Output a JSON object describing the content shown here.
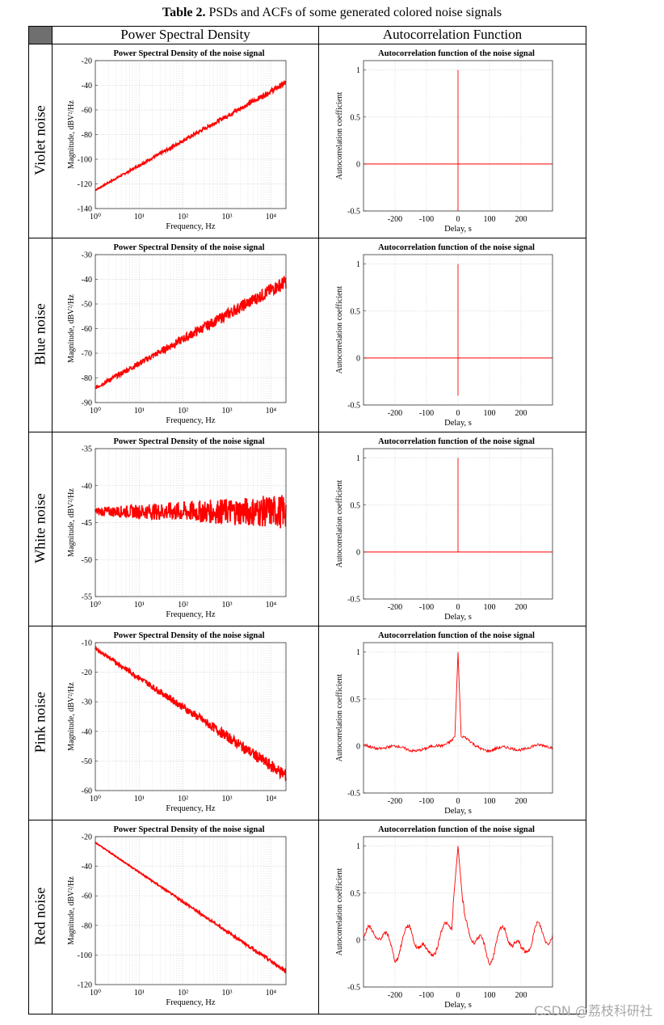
{
  "caption": {
    "label": "Table 2.",
    "text": " PSDs and ACFs of some generated colored noise signals"
  },
  "header": {
    "col1": "Power Spectral Density",
    "col2": "Autocorrelation Function"
  },
  "rows": [
    {
      "label": "Violet noise"
    },
    {
      "label": "Blue noise"
    },
    {
      "label": "White noise"
    },
    {
      "label": "Pink noise"
    },
    {
      "label": "Red noise"
    }
  ],
  "watermark": "CSDN @荔枝科研社",
  "colors": {
    "trace": "#ff0000",
    "grid": "#d9d9d9",
    "header_fill": "#6f6f6f"
  },
  "chart_data": [
    {
      "type": "line",
      "title": "Power Spectral Density of the noise signal",
      "xlabel": "Frequency, Hz",
      "ylabel": "Magnitude, dBV²/Hz",
      "xscale": "log",
      "xlim": [
        1,
        22050
      ],
      "ylim": [
        -140,
        -20
      ],
      "yticks": [
        -20,
        -40,
        -60,
        -80,
        -100,
        -120,
        -140
      ],
      "xticks": [
        "10⁰",
        "10¹",
        "10²",
        "10³",
        "10⁴"
      ],
      "series": [
        {
          "x": [
            1,
            22050
          ],
          "values": [
            -125,
            -38
          ],
          "noise_dB": 1.5
        }
      ]
    },
    {
      "type": "line",
      "title": "Autocorrelation function of the noise signal",
      "xlabel": "Delay, s",
      "ylabel": "Autocorrelation coefficient",
      "xlim": [
        -300,
        300
      ],
      "ylim": [
        -0.5,
        1.1
      ],
      "xticks": [
        -200,
        -100,
        0,
        100,
        200
      ],
      "yticks": [
        1,
        0.5,
        0,
        -0.5
      ],
      "series": [
        {
          "x": [
            -300,
            -1,
            0,
            1,
            300
          ],
          "values": [
            0,
            0,
            1,
            -0.5,
            0
          ]
        }
      ]
    },
    {
      "type": "line",
      "title": "Power Spectral Density of the noise signal",
      "xlabel": "Frequency, Hz",
      "ylabel": "Magnitude, dBV²/Hz",
      "xscale": "log",
      "xlim": [
        1,
        22050
      ],
      "ylim": [
        -90,
        -30
      ],
      "yticks": [
        -30,
        -40,
        -50,
        -60,
        -70,
        -80,
        -90
      ],
      "xticks": [
        "10⁰",
        "10¹",
        "10²",
        "10³",
        "10⁴"
      ],
      "series": [
        {
          "x": [
            1,
            22050
          ],
          "values": [
            -84,
            -41
          ],
          "noise_dB": 2
        }
      ]
    },
    {
      "type": "line",
      "title": "Autocorrelation function of the noise signal",
      "xlabel": "Delay, s",
      "ylabel": "Autocorrelation coefficient",
      "xlim": [
        -300,
        300
      ],
      "ylim": [
        -0.5,
        1.1
      ],
      "xticks": [
        -200,
        -100,
        0,
        100,
        200
      ],
      "yticks": [
        1,
        0.5,
        0,
        -0.5
      ],
      "series": [
        {
          "x": [
            -300,
            -1,
            0,
            1,
            300
          ],
          "values": [
            0,
            0,
            1,
            -0.4,
            0
          ]
        }
      ]
    },
    {
      "type": "line",
      "title": "Power Spectral Density of the noise signal",
      "xlabel": "Frequency, Hz",
      "ylabel": "Magnitude, dBV²/Hz",
      "xscale": "log",
      "xlim": [
        1,
        22050
      ],
      "ylim": [
        -55,
        -35
      ],
      "yticks": [
        -35,
        -40,
        -45,
        -50,
        -55
      ],
      "xticks": [
        "10⁰",
        "10¹",
        "10²",
        "10³",
        "10⁴"
      ],
      "series": [
        {
          "x": [
            1,
            22050
          ],
          "values": [
            -43.5,
            -43.5
          ],
          "noise_dB": 1.6
        }
      ]
    },
    {
      "type": "line",
      "title": "Autocorrelation function of the noise signal",
      "xlabel": "Delay, s",
      "ylabel": "Autocorrelation coefficient",
      "xlim": [
        -300,
        300
      ],
      "ylim": [
        -0.5,
        1.1
      ],
      "xticks": [
        -200,
        -100,
        0,
        100,
        200
      ],
      "yticks": [
        1,
        0.5,
        0,
        -0.5
      ],
      "series": [
        {
          "x": [
            -300,
            -1,
            0,
            1,
            300
          ],
          "values": [
            0,
            0,
            1,
            0,
            0
          ]
        }
      ]
    },
    {
      "type": "line",
      "title": "Power Spectral Density of the noise signal",
      "xlabel": "Frequency, Hz",
      "ylabel": "Magnitude, dBV²/Hz",
      "xscale": "log",
      "xlim": [
        1,
        22050
      ],
      "ylim": [
        -60,
        -10
      ],
      "yticks": [
        -10,
        -20,
        -30,
        -40,
        -50,
        -60
      ],
      "xticks": [
        "10⁰",
        "10¹",
        "10²",
        "10³",
        "10⁴"
      ],
      "series": [
        {
          "x": [
            1,
            22050
          ],
          "values": [
            -12,
            -55
          ],
          "noise_dB": 1.5
        }
      ]
    },
    {
      "type": "line",
      "title": "Autocorrelation function of the noise signal",
      "xlabel": "Delay, s",
      "ylabel": "Autocorrelation coefficient",
      "xlim": [
        -300,
        300
      ],
      "ylim": [
        -0.5,
        1.1
      ],
      "xticks": [
        -200,
        -100,
        0,
        100,
        200
      ],
      "yticks": [
        1,
        0.5,
        0,
        -0.5
      ],
      "series": [
        {
          "x": [
            -300,
            -200,
            -100,
            -50,
            -10,
            0,
            10,
            50,
            100,
            200,
            300
          ],
          "values": [
            0,
            -0.02,
            -0.04,
            0.01,
            0.1,
            1,
            0.1,
            0.01,
            -0.04,
            -0.02,
            0
          ]
        }
      ]
    },
    {
      "type": "line",
      "title": "Power Spectral Density of the noise signal",
      "xlabel": "Frequency, Hz",
      "ylabel": "Magnitude, dBV²/Hz",
      "xscale": "log",
      "xlim": [
        1,
        22050
      ],
      "ylim": [
        -120,
        -20
      ],
      "yticks": [
        -20,
        -40,
        -60,
        -80,
        -100,
        -120
      ],
      "xticks": [
        "10⁰",
        "10¹",
        "10²",
        "10³",
        "10⁴"
      ],
      "series": [
        {
          "x": [
            1,
            22050
          ],
          "values": [
            -24,
            -111
          ],
          "noise_dB": 0.8
        }
      ]
    },
    {
      "type": "line",
      "title": "Autocorrelation function of the noise signal",
      "xlabel": "Delay, s",
      "ylabel": "Autocorrelation coefficient",
      "xlim": [
        -300,
        300
      ],
      "ylim": [
        -0.5,
        1.1
      ],
      "xticks": [
        -200,
        -100,
        0,
        100,
        200
      ],
      "yticks": [
        1,
        0.5,
        0,
        -0.5
      ],
      "series": [
        {
          "x": [
            -300,
            -250,
            -200,
            -150,
            -100,
            -50,
            -20,
            0,
            20,
            50,
            100,
            150,
            200,
            250,
            300
          ],
          "values": [
            0.03,
            0.1,
            -0.15,
            0.12,
            -0.18,
            0.05,
            0.2,
            1,
            0.2,
            0.05,
            -0.18,
            0.12,
            -0.15,
            0.1,
            0.03
          ]
        }
      ]
    }
  ]
}
